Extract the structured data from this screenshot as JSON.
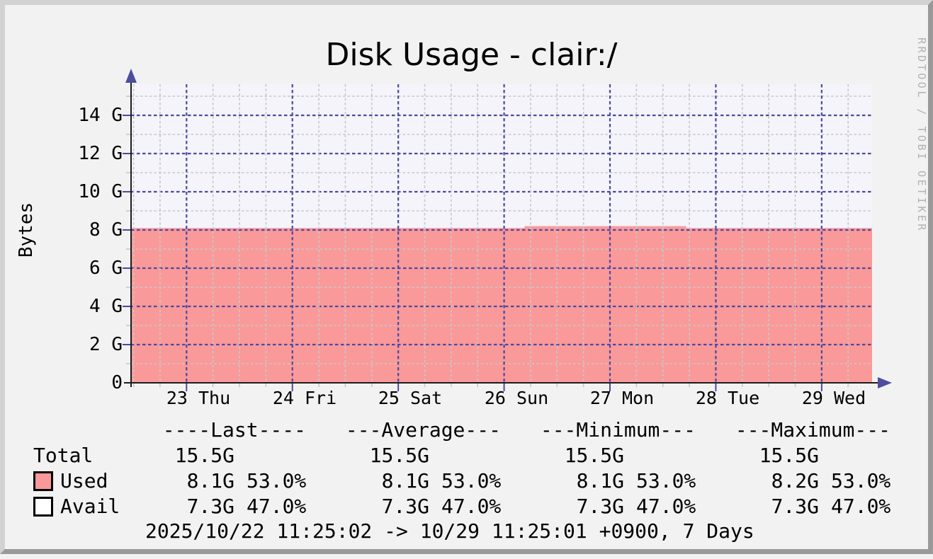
{
  "title": "Disk Usage - clair:/",
  "y_axis_label": "Bytes",
  "watermark": "RRDTOOL / TOBI OETIKER",
  "footer": "2025/10/22 11:25:02 -> 10/29 11:25:01 +0900, 7 Days",
  "colors": {
    "background": "#f2f2f2",
    "canvas": "#f4f4fa",
    "used_area": "#fa9999",
    "avail_area": "#ffffff",
    "grid_major": "#4a4aa0",
    "grid_minor": "#c8c8c8",
    "axis": "#1c1c1c",
    "arrow": "#4e4e9d",
    "border_light": "#d2d2d2",
    "border_dark": "#999999",
    "watermark": "#b2b2b2",
    "text": "#000000"
  },
  "chart_data": {
    "type": "area",
    "title": "Disk Usage - clair:/",
    "xlabel": "",
    "ylabel": "Bytes",
    "y_unit": "G",
    "ylim": [
      0,
      15.6
    ],
    "y_major_step": 2,
    "y_minor_step": 1,
    "ytick_labels": [
      "0",
      "2 G",
      "4 G",
      "6 G",
      "8 G",
      "10 G",
      "12 G",
      "14 G"
    ],
    "ytick_values": [
      0,
      2,
      4,
      6,
      8,
      10,
      12,
      14
    ],
    "xtick_labels": [
      "23 Thu",
      "24 Fri",
      "25 Sat",
      "26 Sun",
      "27 Mon",
      "28 Tue",
      "29 Wed"
    ],
    "x_range": "2025/10/22 11:25:02 -> 10/29 11:25:01 +0900",
    "x_range_days": 7,
    "x_start_offset_days": 0.524,
    "x_minor_per_day": 4,
    "grid": true,
    "legend_position": "bottom",
    "series": [
      {
        "name": "Used",
        "style": "area",
        "color": "#fa9999",
        "segments": [
          {
            "from": 0.0,
            "to": 0.531,
            "value": 8.1
          },
          {
            "from": 0.531,
            "to": 0.749,
            "value": 8.2
          },
          {
            "from": 0.749,
            "to": 1.0,
            "value": 8.1
          }
        ]
      },
      {
        "name": "Avail",
        "style": "area-above",
        "color": "#ffffff",
        "value": 7.3
      },
      {
        "name": "Total",
        "style": "none",
        "value": 15.5
      }
    ]
  },
  "legend": {
    "headers": [
      "----Last----",
      "---Average---",
      "---Minimum---",
      "---Maximum---"
    ],
    "rows": [
      {
        "label": "Total",
        "swatch": null,
        "values": [
          "15.5G",
          "15.5G",
          "15.5G",
          "15.5G"
        ],
        "pcts": [
          "",
          "",
          "",
          ""
        ]
      },
      {
        "label": "Used",
        "swatch": "#fa9999",
        "values": [
          "8.1G",
          "8.1G",
          "8.1G",
          "8.2G"
        ],
        "pcts": [
          "53.0%",
          "53.0%",
          "53.0%",
          "53.0%"
        ]
      },
      {
        "label": "Avail",
        "swatch": "#ffffff",
        "values": [
          "7.3G",
          "7.3G",
          "7.3G",
          "7.3G"
        ],
        "pcts": [
          "47.0%",
          "47.0%",
          "47.0%",
          "47.0%"
        ]
      }
    ]
  }
}
